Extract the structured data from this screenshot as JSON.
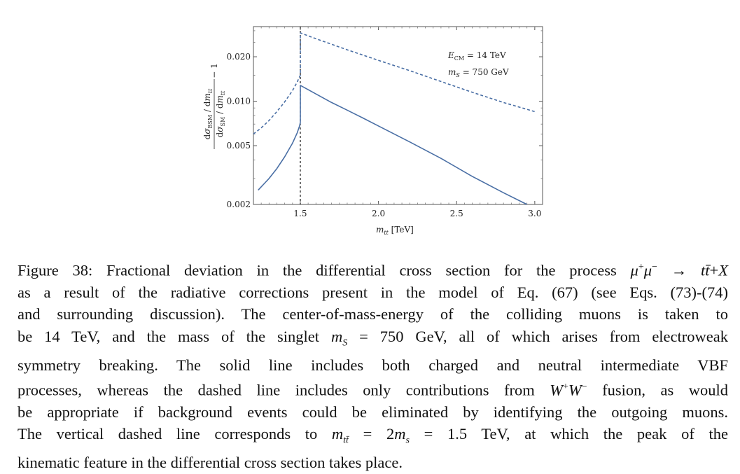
{
  "chart_data": {
    "type": "line",
    "xlabel": "m_tt [TeV]",
    "ylabel": "dσ_BSM / dm_tt / dσ_SM / dm_tt − 1",
    "y_scale": "log",
    "xlim": [
      1.2,
      3.05
    ],
    "ylim": [
      0.002,
      0.032
    ],
    "x_ticks": [
      "1.5",
      "2.0",
      "2.5",
      "3.0"
    ],
    "y_ticks": [
      "0.002",
      "0.005",
      "0.010",
      "0.020"
    ],
    "vertical_line": {
      "x": 1.5,
      "style": "dashed"
    },
    "annotations": [
      "E_CM = 14 TeV",
      "m_S = 750 GeV"
    ],
    "series": [
      {
        "style": "solid",
        "color": "#4a6fa5",
        "x": [
          1.23,
          1.3,
          1.35,
          1.4,
          1.45,
          1.48,
          1.495,
          1.5,
          1.5,
          1.6,
          1.7,
          1.8,
          1.9,
          2.0,
          2.2,
          2.4,
          2.6,
          2.8,
          2.95
        ],
        "y": [
          0.0025,
          0.003,
          0.0035,
          0.0042,
          0.0052,
          0.0061,
          0.0068,
          0.0072,
          0.0128,
          0.0112,
          0.0098,
          0.0087,
          0.0077,
          0.0068,
          0.0053,
          0.0041,
          0.0031,
          0.0024,
          0.002
        ]
      },
      {
        "style": "dashed",
        "color": "#4a6fa5",
        "x": [
          1.2,
          1.25,
          1.3,
          1.35,
          1.4,
          1.45,
          1.48,
          1.5,
          1.5,
          1.6,
          1.7,
          1.8,
          2.0,
          2.2,
          2.4,
          2.6,
          2.8,
          3.0
        ],
        "y": [
          0.006,
          0.0066,
          0.0074,
          0.0085,
          0.0099,
          0.0118,
          0.0135,
          0.015,
          0.029,
          0.0265,
          0.0243,
          0.0223,
          0.0189,
          0.0161,
          0.0136,
          0.0115,
          0.0098,
          0.0085
        ]
      }
    ]
  },
  "caption_lines": [
    "Figure 38: Fractional deviation in the differential cross section for the process μ⁺μ⁻ → tt̄+X",
    "as a result of the radiative corrections present in the model of Eq. (67) (see Eqs. (73)-(74)",
    "and surrounding discussion). The center-of-mass-energy of the colliding muons is taken to",
    "be 14 TeV, and the mass of the singlet m_S = 750 GeV, all of which arises from electroweak",
    "symmetry breaking. The solid line includes both charged and neutral intermediate VBF",
    "processes, whereas the dashed line includes only contributions from W⁺W⁻ fusion, as would",
    "be appropriate if background events could be eliminated by identifying the outgoing muons.",
    "The vertical dashed line corresponds to m_tt̄ = 2m_s = 1.5 TeV, at which the peak of the",
    "kinematic feature in the differential cross section takes place."
  ]
}
